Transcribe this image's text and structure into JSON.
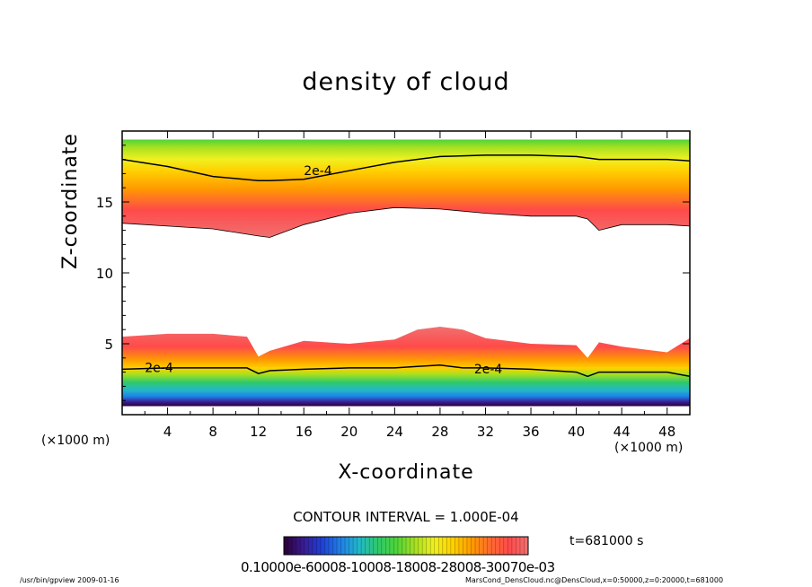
{
  "title": "density of cloud",
  "chart_data": {
    "type": "heatmap",
    "title": "density of cloud",
    "xlabel": "X-coordinate",
    "ylabel": "Z-coordinate",
    "xunit": "(×1000 m)",
    "xlim": [
      0,
      50
    ],
    "ylim": [
      0,
      20
    ],
    "xticks": [
      "4",
      "8",
      "12",
      "16",
      "20",
      "24",
      "28",
      "32",
      "36",
      "40",
      "44",
      "48"
    ],
    "yticks": [
      "5",
      "10",
      "15"
    ],
    "contour_label": "2e-4",
    "contour_interval": "CONTOUR INTERVAL = 1.000E-04",
    "upper_cloud": {
      "x": [
        0,
        4,
        8,
        12,
        13,
        16,
        20,
        24,
        28,
        32,
        36,
        40,
        41,
        42,
        44,
        48,
        50
      ],
      "base_z": [
        13.5,
        13.3,
        13.1,
        12.6,
        12.5,
        13.4,
        14.2,
        14.6,
        14.5,
        14.2,
        14.0,
        14.0,
        13.8,
        13.0,
        13.4,
        13.4,
        13.3
      ],
      "top_z": [
        19.4,
        19.4,
        19.4,
        19.4,
        19.4,
        19.4,
        19.4,
        19.4,
        19.4,
        19.4,
        19.4,
        19.4,
        19.4,
        19.4,
        19.4,
        19.4,
        19.4
      ],
      "contour_2e-4_z": [
        18.0,
        17.5,
        16.8,
        16.5,
        16.5,
        16.6,
        17.2,
        17.8,
        18.2,
        18.3,
        18.3,
        18.2,
        18.1,
        18.0,
        18.0,
        18.0,
        17.9
      ]
    },
    "lower_cloud": {
      "x": [
        0,
        4,
        8,
        11,
        12,
        13,
        16,
        20,
        24,
        26,
        28,
        30,
        32,
        36,
        40,
        41,
        42,
        44,
        48,
        50
      ],
      "top_z": [
        5.5,
        5.7,
        5.7,
        5.5,
        4.1,
        4.5,
        5.2,
        5.0,
        5.3,
        6.0,
        6.2,
        6.0,
        5.4,
        5.0,
        4.9,
        4.0,
        5.1,
        4.8,
        4.4,
        5.4
      ],
      "contour_2e-4_z": [
        3.2,
        3.3,
        3.3,
        3.3,
        2.9,
        3.1,
        3.2,
        3.3,
        3.3,
        3.4,
        3.5,
        3.3,
        3.3,
        3.2,
        3.0,
        2.7,
        3.0,
        3.0,
        3.0,
        2.7
      ],
      "bottom_z": [
        0.6,
        0.6,
        0.6,
        0.6,
        0.6,
        0.6,
        0.6,
        0.6,
        0.6,
        0.6,
        0.6,
        0.6,
        0.6,
        0.6,
        0.6,
        0.6,
        0.6,
        0.6,
        0.6,
        0.6
      ]
    },
    "colorbar": {
      "tick_labels_overlapping": "0.10000e-60008-10008-18008-28008-30070e-03",
      "colors": [
        "#2a0033",
        "#3b1a8f",
        "#1e3fd6",
        "#1f7fe6",
        "#22b8c9",
        "#2ec96a",
        "#4fd33a",
        "#a8e020",
        "#f0f020",
        "#ffd000",
        "#ff9b00",
        "#ff6a30",
        "#ff4a4a",
        "#f07070"
      ]
    },
    "time_label": "t=681000 s",
    "grid": false,
    "legend": "none"
  },
  "footer": {
    "left": "/usr/bin/gpview   2009-01-16",
    "right": "MarsCond_DensCloud.nc@DensCloud,x=0:50000,z=0:20000,t=681000"
  },
  "colors": {
    "background": "#ffffff",
    "axis": "#000000"
  }
}
